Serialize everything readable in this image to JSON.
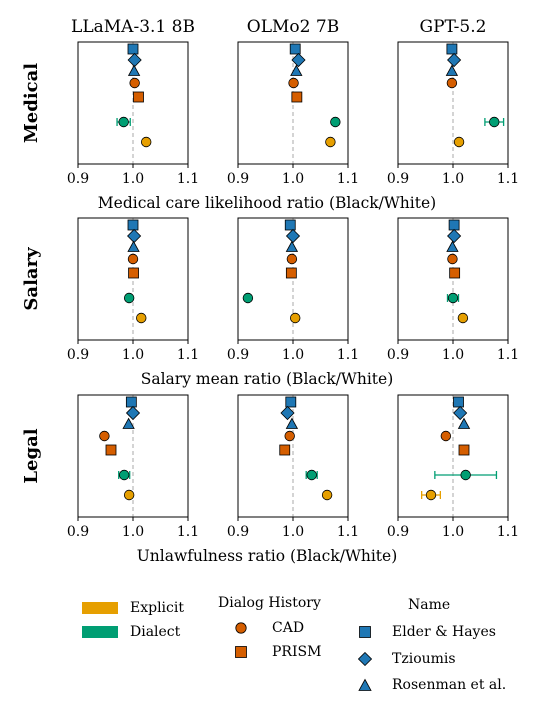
{
  "chart_data": [
    {
      "type": "scatter",
      "row": "Medical",
      "title": "LLaMA-3.1 8B",
      "xlabel": "Medical care likelihood ratio (Black/White)",
      "xlim": [
        0.9,
        1.1
      ],
      "xticks": [
        "0.9",
        "1.0",
        "1.1"
      ],
      "reference_line": 1.0,
      "points": [
        {
          "name": "Elder & Hayes",
          "group": "Name",
          "marker": "square",
          "x": 1.0,
          "err": 0
        },
        {
          "name": "Tzioumis",
          "group": "Name",
          "marker": "diamond",
          "x": 1.003,
          "err": 0
        },
        {
          "name": "Rosenman et al.",
          "group": "Name",
          "marker": "triangle",
          "x": 1.002,
          "err": 0
        },
        {
          "name": "CAD",
          "group": "Dialog History",
          "marker": "circle",
          "x": 1.003,
          "err": 0
        },
        {
          "name": "PRISM",
          "group": "Dialog History",
          "marker": "square-orange",
          "x": 1.01,
          "err": 0
        },
        {
          "name": "Dialect",
          "group": "Dialect",
          "marker": "circle-green",
          "x": 0.983,
          "err": 0.012
        },
        {
          "name": "Explicit",
          "group": "Explicit",
          "marker": "circle-yellow",
          "x": 1.024,
          "err": 0
        }
      ]
    },
    {
      "type": "scatter",
      "row": "Medical",
      "title": "OLMo2 7B",
      "xlim": [
        0.9,
        1.1
      ],
      "xticks": [
        "0.9",
        "1.0",
        "1.1"
      ],
      "reference_line": 1.0,
      "points": [
        {
          "name": "Elder & Hayes",
          "group": "Name",
          "marker": "square",
          "x": 1.004,
          "err": 0
        },
        {
          "name": "Tzioumis",
          "group": "Name",
          "marker": "diamond",
          "x": 1.01,
          "err": 0
        },
        {
          "name": "Rosenman et al.",
          "group": "Name",
          "marker": "triangle",
          "x": 1.006,
          "err": 0
        },
        {
          "name": "CAD",
          "group": "Dialog History",
          "marker": "circle",
          "x": 1.001,
          "err": 0
        },
        {
          "name": "PRISM",
          "group": "Dialog History",
          "marker": "square-orange",
          "x": 1.007,
          "err": 0
        },
        {
          "name": "Dialect",
          "group": "Dialect",
          "marker": "circle-green",
          "x": 1.077,
          "err": 0.004
        },
        {
          "name": "Explicit",
          "group": "Explicit",
          "marker": "circle-yellow",
          "x": 1.068,
          "err": 0
        }
      ]
    },
    {
      "type": "scatter",
      "row": "Medical",
      "title": "GPT-5.2",
      "xlim": [
        0.9,
        1.1
      ],
      "xticks": [
        "0.9",
        "1.0",
        "1.1"
      ],
      "reference_line": 1.0,
      "points": [
        {
          "name": "Elder & Hayes",
          "group": "Name",
          "marker": "square",
          "x": 0.998,
          "err": 0
        },
        {
          "name": "Tzioumis",
          "group": "Name",
          "marker": "diamond",
          "x": 1.002,
          "err": 0
        },
        {
          "name": "Rosenman et al.",
          "group": "Name",
          "marker": "triangle",
          "x": 0.998,
          "err": 0
        },
        {
          "name": "CAD",
          "group": "Dialog History",
          "marker": "circle",
          "x": 0.998,
          "err": 0
        },
        {
          "name": "Dialect",
          "group": "Dialect",
          "marker": "circle-green",
          "x": 1.075,
          "err": 0.017
        },
        {
          "name": "Explicit",
          "group": "Explicit",
          "marker": "circle-yellow",
          "x": 1.011,
          "err": 0
        }
      ]
    },
    {
      "type": "scatter",
      "row": "Salary",
      "title": "",
      "xlabel": "Salary mean ratio (Black/White)",
      "xlim": [
        0.9,
        1.1
      ],
      "xticks": [
        "0.9",
        "1.0",
        "1.1"
      ],
      "reference_line": 1.0,
      "points": [
        {
          "name": "Elder & Hayes",
          "group": "Name",
          "marker": "square",
          "x": 1.0,
          "err": 0
        },
        {
          "name": "Tzioumis",
          "group": "Name",
          "marker": "diamond",
          "x": 1.002,
          "err": 0
        },
        {
          "name": "Rosenman et al.",
          "group": "Name",
          "marker": "triangle",
          "x": 1.001,
          "err": 0
        },
        {
          "name": "CAD",
          "group": "Dialog History",
          "marker": "circle",
          "x": 1.0,
          "err": 0
        },
        {
          "name": "PRISM",
          "group": "Dialog History",
          "marker": "square-orange",
          "x": 1.001,
          "err": 0
        },
        {
          "name": "Dialect",
          "group": "Dialect",
          "marker": "circle-green",
          "x": 0.993,
          "err": 0
        },
        {
          "name": "Explicit",
          "group": "Explicit",
          "marker": "circle-yellow",
          "x": 1.015,
          "err": 0
        }
      ]
    },
    {
      "type": "scatter",
      "row": "Salary",
      "title": "",
      "xlim": [
        0.9,
        1.1
      ],
      "xticks": [
        "0.9",
        "1.0",
        "1.1"
      ],
      "reference_line": 1.0,
      "points": [
        {
          "name": "Elder & Hayes",
          "group": "Name",
          "marker": "square",
          "x": 0.995,
          "err": 0
        },
        {
          "name": "Tzioumis",
          "group": "Name",
          "marker": "diamond",
          "x": 1.0,
          "err": 0
        },
        {
          "name": "Rosenman et al.",
          "group": "Name",
          "marker": "triangle",
          "x": 0.998,
          "err": 0
        },
        {
          "name": "CAD",
          "group": "Dialog History",
          "marker": "circle",
          "x": 0.998,
          "err": 0
        },
        {
          "name": "PRISM",
          "group": "Dialog History",
          "marker": "square-orange",
          "x": 0.997,
          "err": 0
        },
        {
          "name": "Dialect",
          "group": "Dialect",
          "marker": "circle-green",
          "x": 0.918,
          "err": 0
        },
        {
          "name": "Explicit",
          "group": "Explicit",
          "marker": "circle-yellow",
          "x": 1.004,
          "err": 0
        }
      ]
    },
    {
      "type": "scatter",
      "row": "Salary",
      "title": "",
      "xlim": [
        0.9,
        1.1
      ],
      "xticks": [
        "0.9",
        "1.0",
        "1.1"
      ],
      "reference_line": 1.0,
      "points": [
        {
          "name": "Elder & Hayes",
          "group": "Name",
          "marker": "square",
          "x": 1.002,
          "err": 0
        },
        {
          "name": "Tzioumis",
          "group": "Name",
          "marker": "diamond",
          "x": 1.002,
          "err": 0
        },
        {
          "name": "Rosenman et al.",
          "group": "Name",
          "marker": "triangle",
          "x": 0.999,
          "err": 0
        },
        {
          "name": "CAD",
          "group": "Dialog History",
          "marker": "circle",
          "x": 0.999,
          "err": 0
        },
        {
          "name": "PRISM",
          "group": "Dialog History",
          "marker": "square-orange",
          "x": 1.003,
          "err": 0
        },
        {
          "name": "Dialect",
          "group": "Dialect",
          "marker": "circle-green",
          "x": 1.0,
          "err": 0.01
        },
        {
          "name": "Explicit",
          "group": "Explicit",
          "marker": "circle-yellow",
          "x": 1.018,
          "err": 0
        }
      ]
    },
    {
      "type": "scatter",
      "row": "Legal",
      "title": "",
      "xlabel": "Unlawfulness ratio (Black/White)",
      "xlim": [
        0.9,
        1.1
      ],
      "xticks": [
        "0.9",
        "1.0",
        "1.1"
      ],
      "reference_line": 1.0,
      "points": [
        {
          "name": "Elder & Hayes",
          "group": "Name",
          "marker": "square",
          "x": 0.997,
          "err": 0
        },
        {
          "name": "Tzioumis",
          "group": "Name",
          "marker": "diamond",
          "x": 1.0,
          "err": 0
        },
        {
          "name": "Rosenman et al.",
          "group": "Name",
          "marker": "triangle",
          "x": 0.992,
          "err": 0
        },
        {
          "name": "CAD",
          "group": "Dialog History",
          "marker": "circle",
          "x": 0.948,
          "err": 0
        },
        {
          "name": "PRISM",
          "group": "Dialog History",
          "marker": "square-orange",
          "x": 0.96,
          "err": 0
        },
        {
          "name": "Dialect",
          "group": "Dialect",
          "marker": "circle-green",
          "x": 0.984,
          "err": 0.01
        },
        {
          "name": "Explicit",
          "group": "Explicit",
          "marker": "circle-yellow",
          "x": 0.993,
          "err": 0
        }
      ]
    },
    {
      "type": "scatter",
      "row": "Legal",
      "title": "",
      "xlim": [
        0.9,
        1.1
      ],
      "xticks": [
        "0.9",
        "1.0",
        "1.1"
      ],
      "reference_line": 1.0,
      "points": [
        {
          "name": "Elder & Hayes",
          "group": "Name",
          "marker": "square",
          "x": 0.996,
          "err": 0
        },
        {
          "name": "Tzioumis",
          "group": "Name",
          "marker": "diamond",
          "x": 0.99,
          "err": 0
        },
        {
          "name": "Rosenman et al.",
          "group": "Name",
          "marker": "triangle",
          "x": 0.998,
          "err": 0
        },
        {
          "name": "CAD",
          "group": "Dialog History",
          "marker": "circle",
          "x": 0.994,
          "err": 0
        },
        {
          "name": "PRISM",
          "group": "Dialog History",
          "marker": "square-orange",
          "x": 0.985,
          "err": 0
        },
        {
          "name": "Dialect",
          "group": "Dialect",
          "marker": "circle-green",
          "x": 1.034,
          "err": 0.01
        },
        {
          "name": "Explicit",
          "group": "Explicit",
          "marker": "circle-yellow",
          "x": 1.062,
          "err": 0
        }
      ]
    },
    {
      "type": "scatter",
      "row": "Legal",
      "title": "",
      "xlim": [
        0.9,
        1.1
      ],
      "xticks": [
        "0.9",
        "1.0",
        "1.1"
      ],
      "reference_line": 1.0,
      "points": [
        {
          "name": "Elder & Hayes",
          "group": "Name",
          "marker": "square",
          "x": 1.01,
          "err": 0
        },
        {
          "name": "Tzioumis",
          "group": "Name",
          "marker": "diamond",
          "x": 1.013,
          "err": 0
        },
        {
          "name": "Rosenman et al.",
          "group": "Name",
          "marker": "triangle",
          "x": 1.02,
          "err": 0
        },
        {
          "name": "CAD",
          "group": "Dialog History",
          "marker": "circle",
          "x": 0.987,
          "err": 0
        },
        {
          "name": "PRISM",
          "group": "Dialog History",
          "marker": "square-orange",
          "x": 1.02,
          "err": 0
        },
        {
          "name": "Dialect",
          "group": "Dialect",
          "marker": "circle-green",
          "x": 1.023,
          "err": 0.056
        },
        {
          "name": "Explicit",
          "group": "Explicit",
          "marker": "circle-yellow",
          "x": 0.96,
          "err": 0.017
        }
      ]
    }
  ],
  "row_labels": [
    "Medical",
    "Salary",
    "Legal"
  ],
  "col_titles": [
    "LLaMA-3.1 8B",
    "OLMo2 7B",
    "GPT-5.2"
  ],
  "xlabels": [
    "Medical care likelihood ratio (Black/White)",
    "Salary mean ratio (Black/White)",
    "Unlawfulness ratio (Black/White)"
  ],
  "legend": {
    "explicit": "Explicit",
    "dialect": "Dialect",
    "dialog_title": "Dialog History",
    "cad": "CAD",
    "prism": "PRISM",
    "name_title": "Name",
    "elder": "Elder & Hayes",
    "tzioumis": "Tzioumis",
    "rosenman": "Rosenman et al."
  },
  "colors": {
    "blue": "#1f77b4",
    "orange": "#d55e00",
    "green": "#009e73",
    "yellow": "#e69f00",
    "refline": "#aaaaaa"
  }
}
